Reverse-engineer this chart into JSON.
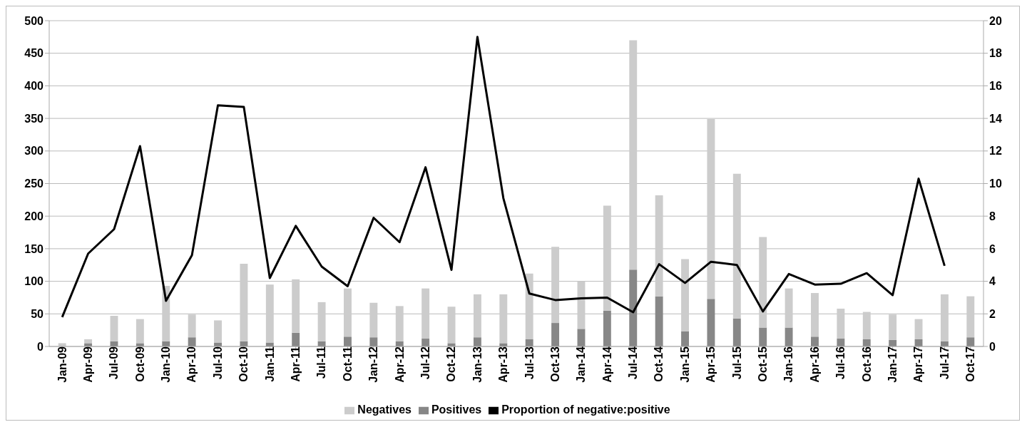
{
  "chart_data": {
    "type": "bar",
    "stacked": true,
    "categories": [
      "Jan-09",
      "Apr-09",
      "Jul-09",
      "Oct-09",
      "Jan-10",
      "Apr-10",
      "Jul-10",
      "Oct-10",
      "Jan-11",
      "Apr-11",
      "Jul-11",
      "Oct-11",
      "Jan-12",
      "Apr-12",
      "Jul-12",
      "Oct-12",
      "Jan-13",
      "Apr-13",
      "Jul-13",
      "Oct-13",
      "Jan-14",
      "Apr-14",
      "Jul-14",
      "Oct-14",
      "Jan-15",
      "Apr-15",
      "Jul-15",
      "Oct-15",
      "Jan-16",
      "Apr-16",
      "Jul-16",
      "Oct-16",
      "Jan-17",
      "Apr-17",
      "Jul-17",
      "Oct-17"
    ],
    "series": [
      {
        "name": "Positives",
        "color": "#878787",
        "values": [
          null,
          5,
          8,
          5,
          8,
          14,
          6,
          8,
          6,
          21,
          8,
          15,
          14,
          8,
          12,
          5,
          14,
          5,
          11,
          36,
          27,
          55,
          118,
          77,
          23,
          73,
          43,
          29,
          29,
          15,
          12,
          11,
          10,
          11,
          8,
          14
        ]
      },
      {
        "name": "Negatives",
        "color": "#cccccc",
        "values": [
          5,
          6,
          39,
          37,
          85,
          35,
          34,
          119,
          89,
          82,
          60,
          74,
          53,
          54,
          77,
          56,
          66,
          75,
          101,
          117,
          73,
          161,
          352,
          155,
          111,
          276,
          222,
          139,
          60,
          67,
          46,
          42,
          39,
          31,
          72,
          63
        ]
      },
      {
        "name": "Proportion of negative:positive",
        "type": "line",
        "axis": "y2",
        "color": "#000000",
        "values": [
          1.8,
          5.7,
          7.2,
          12.3,
          2.8,
          5.6,
          14.8,
          14.7,
          4.2,
          7.4,
          4.9,
          3.7,
          7.9,
          6.4,
          11.0,
          4.7,
          19.0,
          9.1,
          3.25,
          2.85,
          2.95,
          3.0,
          2.1,
          5.05,
          3.9,
          5.2,
          5.0,
          2.15,
          4.45,
          3.8,
          3.85,
          4.5,
          3.15,
          10.3,
          4.95,
          null
        ]
      }
    ],
    "ylim": [
      0,
      500
    ],
    "yticks": [
      0,
      50,
      100,
      150,
      200,
      250,
      300,
      350,
      400,
      450,
      500
    ],
    "y2lim": [
      0,
      20
    ],
    "y2ticks": [
      0,
      2,
      4,
      6,
      8,
      10,
      12,
      14,
      16,
      18,
      20
    ],
    "grid": "y",
    "legend": "bottom",
    "marker": "none"
  }
}
